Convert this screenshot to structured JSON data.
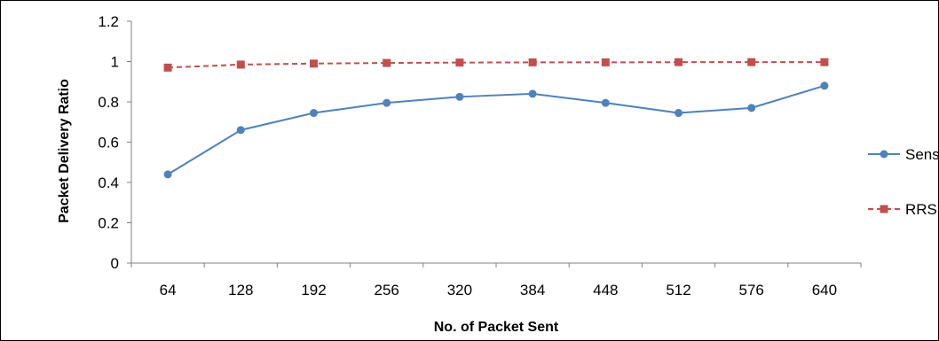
{
  "chart_data": {
    "type": "line",
    "title": "",
    "xlabel": "No. of Packet Sent",
    "ylabel": "Packet Delivery Ratio",
    "categories": [
      "64",
      "128",
      "192",
      "256",
      "320",
      "384",
      "448",
      "512",
      "576",
      "640"
    ],
    "ylim": [
      0,
      1.2
    ],
    "yticks": [
      "0",
      "0.2",
      "0.4",
      "0.6",
      "0.8",
      "1",
      "1.2"
    ],
    "grid": false,
    "legend_position": "right",
    "series": [
      {
        "name": "SensorAnt",
        "color": "#4f81bd",
        "marker": "circle",
        "line_style": "solid",
        "values": [
          0.44,
          0.66,
          0.745,
          0.795,
          0.825,
          0.84,
          0.795,
          0.745,
          0.77,
          0.88
        ]
      },
      {
        "name": "RRSEB",
        "color": "#c0504d",
        "marker": "square",
        "line_style": "dashed",
        "values": [
          0.97,
          0.985,
          0.99,
          0.993,
          0.995,
          0.996,
          0.996,
          0.997,
          0.997,
          0.997
        ]
      }
    ]
  }
}
